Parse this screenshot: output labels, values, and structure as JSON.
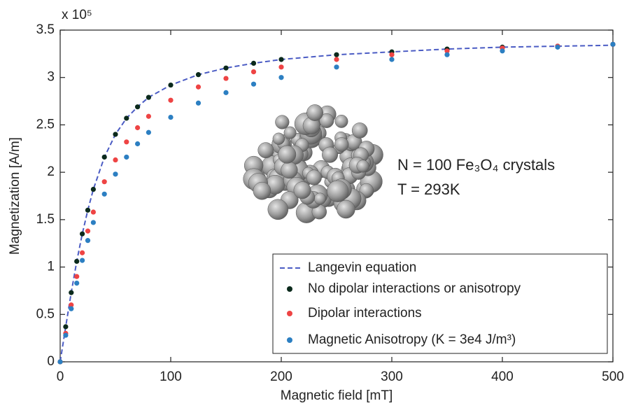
{
  "chart_data": {
    "type": "line",
    "x_label": "Magnetic field [mT]",
    "y_label": "Magnetization [A/m]",
    "y_multiplier": "x 10⁵",
    "annotations": [
      "N = 100 Fe₃O₄ crystals",
      "T = 293K"
    ],
    "x": [
      0,
      5,
      10,
      15,
      20,
      25,
      30,
      40,
      50,
      60,
      70,
      80,
      100,
      125,
      150,
      175,
      200,
      250,
      300,
      350,
      400,
      450,
      500
    ],
    "series": [
      {
        "name": "Langevin equation",
        "color": "#4b5cc4",
        "mode": "dashed-line",
        "values": [
          0,
          0.37,
          0.73,
          1.06,
          1.35,
          1.6,
          1.82,
          2.16,
          2.4,
          2.57,
          2.69,
          2.79,
          2.92,
          3.03,
          3.1,
          3.15,
          3.19,
          3.24,
          3.27,
          3.3,
          3.32,
          3.33,
          3.34
        ]
      },
      {
        "name": "No dipolar interactions or anisotropy",
        "color": "#0b2a1c",
        "mode": "markers",
        "values": [
          0,
          0.37,
          0.73,
          1.06,
          1.35,
          1.6,
          1.82,
          2.16,
          2.4,
          2.57,
          2.69,
          2.79,
          2.92,
          3.03,
          3.1,
          3.15,
          3.19,
          3.24,
          3.27,
          3.3,
          3.32,
          3.33,
          3.35
        ]
      },
      {
        "name": "Dipolar interactions",
        "color": "#ee4444",
        "mode": "markers",
        "values": [
          0,
          0.3,
          0.6,
          0.9,
          1.15,
          1.38,
          1.58,
          1.9,
          2.13,
          2.32,
          2.47,
          2.59,
          2.76,
          2.9,
          2.99,
          3.06,
          3.11,
          3.19,
          3.24,
          3.28,
          3.31,
          3.33,
          3.35
        ]
      },
      {
        "name": "Magnetic Anisotropy (K = 3e4 J/m³)",
        "color": "#2c7fc2",
        "mode": "markers",
        "values": [
          0,
          0.28,
          0.56,
          0.83,
          1.07,
          1.28,
          1.47,
          1.77,
          1.98,
          2.16,
          2.3,
          2.42,
          2.58,
          2.73,
          2.84,
          2.93,
          3.0,
          3.11,
          3.19,
          3.24,
          3.28,
          3.32,
          3.35
        ]
      }
    ],
    "xlim": [
      0,
      500
    ],
    "xticks": [
      0,
      100,
      200,
      300,
      400,
      500
    ],
    "ylim": [
      0,
      3.5
    ],
    "yticks": [
      0,
      0.5,
      1,
      1.5,
      2,
      2.5,
      3,
      3.5
    ],
    "grid": false,
    "legend_position": "lower right"
  }
}
